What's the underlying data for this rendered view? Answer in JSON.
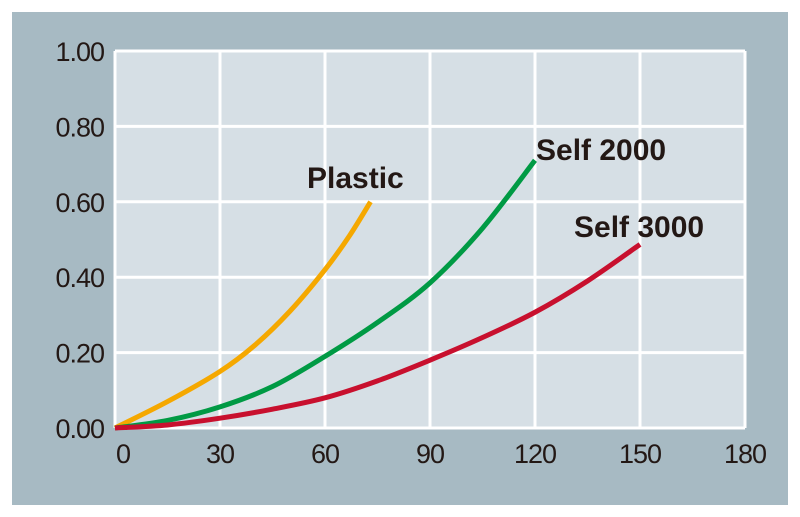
{
  "chart_data": {
    "type": "line",
    "title": "",
    "xlabel": "",
    "ylabel": "",
    "xlim": [
      0,
      180
    ],
    "ylim": [
      0,
      1.0
    ],
    "grid": true,
    "x_ticks": [
      "0",
      "30",
      "60",
      "90",
      "120",
      "150",
      "180"
    ],
    "x_tick_values": [
      0,
      30,
      60,
      90,
      120,
      150,
      180
    ],
    "y_ticks": [
      "0.00",
      "0.20",
      "0.40",
      "0.60",
      "0.80",
      "1.00"
    ],
    "y_tick_values": [
      0,
      0.2,
      0.4,
      0.6,
      0.8,
      1.0
    ],
    "series": [
      {
        "name": "Plastic",
        "color": "#f5a800",
        "x": [
          0,
          15,
          30,
          40,
          50,
          60,
          67,
          73
        ],
        "y": [
          0,
          0.07,
          0.15,
          0.22,
          0.31,
          0.42,
          0.51,
          0.6
        ]
      },
      {
        "name": "Self 2000",
        "color": "#009a44",
        "x": [
          0,
          15,
          30,
          45,
          60,
          75,
          90,
          105,
          120
        ],
        "y": [
          0,
          0.02,
          0.056,
          0.11,
          0.19,
          0.28,
          0.385,
          0.53,
          0.71
        ]
      },
      {
        "name": "Self 3000",
        "color": "#c8102e",
        "x": [
          0,
          15,
          30,
          45,
          60,
          75,
          90,
          105,
          120,
          135,
          150
        ],
        "y": [
          0,
          0.008,
          0.026,
          0.05,
          0.08,
          0.125,
          0.18,
          0.24,
          0.307,
          0.39,
          0.487
        ]
      }
    ],
    "colors": {
      "background": "#a7bac3",
      "plot_area": "#d6dfe5",
      "grid": "#ffffff"
    }
  }
}
